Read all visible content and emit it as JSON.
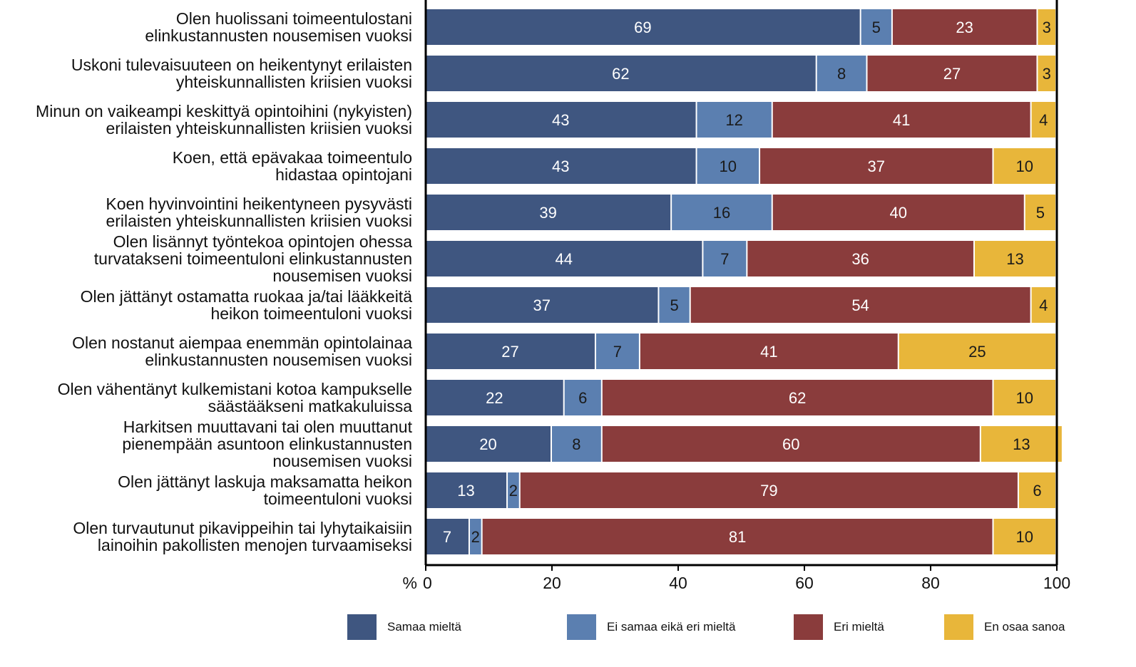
{
  "chart_data": {
    "type": "bar",
    "orientation": "horizontal",
    "stacked": true,
    "unit_label": "%",
    "xlim": [
      0,
      100
    ],
    "x_ticks": [
      0,
      20,
      40,
      60,
      80,
      100
    ],
    "grid": false,
    "legend_position": "bottom",
    "categories": [
      [
        "Olen huolissani toimeentulostani",
        "elinkustannusten nousemisen vuoksi"
      ],
      [
        "Uskoni tulevaisuuteen on heikentynyt erilaisten",
        "yhteiskunnallisten kriisien vuoksi"
      ],
      [
        "Minun on vaikeampi keskittyä opintoihini (nykyisten)",
        "erilaisten yhteiskunnallisten kriisien vuoksi"
      ],
      [
        "Koen, että epävakaa toimeentulo",
        "hidastaa opintojani"
      ],
      [
        "Koen hyvinvointini heikentyneen pysyvästi",
        "erilaisten yhteiskunnallisten kriisien vuoksi"
      ],
      [
        "Olen lisännyt työntekoa opintojen ohessa",
        "turvatakseni toimeentuloni elinkustannusten",
        "nousemisen vuoksi"
      ],
      [
        "Olen jättänyt ostamatta ruokaa ja/tai lääkkeitä",
        "heikon toimeentuloni vuoksi"
      ],
      [
        "Olen nostanut aiempaa enemmän opintolainaa",
        "elinkustannusten nousemisen vuoksi"
      ],
      [
        "Olen vähentänyt kulkemistani kotoa kampukselle",
        "säästääkseni matkakuluissa"
      ],
      [
        "Harkitsen muuttavani tai olen muuttanut",
        "pienempään asuntoon elinkustannusten",
        "nousemisen vuoksi"
      ],
      [
        "Olen jättänyt laskuja maksamatta heikon",
        "toimeentuloni vuoksi"
      ],
      [
        "Olen turvautunut pikavippeihin tai lyhytaikaisiin",
        "lainoihin pakollisten menojen turvaamiseksi"
      ]
    ],
    "series": [
      {
        "name": "Samaa mieltä",
        "color": "#3f5680",
        "label_color": "#ffffff",
        "values": [
          69,
          62,
          43,
          43,
          39,
          44,
          37,
          27,
          22,
          20,
          13,
          7
        ]
      },
      {
        "name": "Ei samaa eikä eri mieltä",
        "color": "#5b7fb0",
        "label_color": "#1a1a1a",
        "values": [
          5,
          8,
          12,
          10,
          16,
          7,
          5,
          7,
          6,
          8,
          2,
          2
        ]
      },
      {
        "name": "Eri mieltä",
        "color": "#8a3c3c",
        "label_color": "#ffffff",
        "values": [
          23,
          27,
          41,
          37,
          40,
          36,
          54,
          41,
          62,
          60,
          79,
          81
        ]
      },
      {
        "name": "En osaa sanoa",
        "color": "#e8b63a",
        "label_color": "#1a1a1a",
        "values": [
          3,
          3,
          4,
          10,
          5,
          13,
          4,
          25,
          10,
          13,
          6,
          10
        ]
      }
    ]
  }
}
